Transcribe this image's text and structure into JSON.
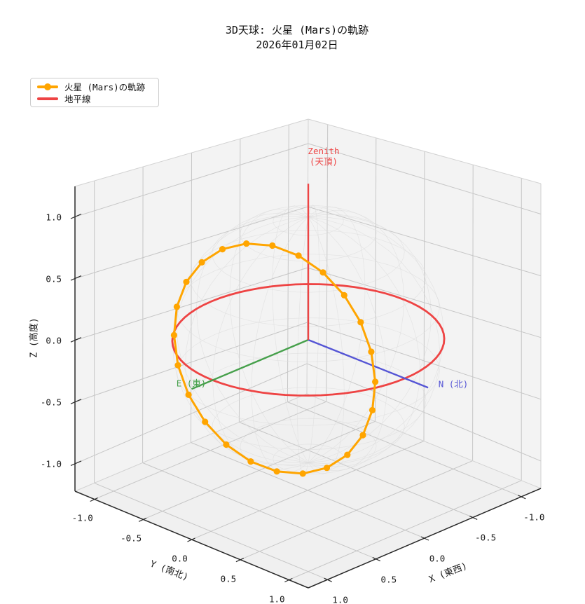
{
  "chart_data": {
    "type": "line",
    "projection": "3d",
    "title": "3D天球: 火星 (Mars)の軌跡",
    "subtitle": "2026年01月02日",
    "grid": true,
    "legend_position": "upper-left",
    "legend": [
      {
        "label": "火星 (Mars)の軌跡",
        "color": "#FFA500",
        "marker": "circle"
      },
      {
        "label": "地平線",
        "color": "#EE4444",
        "marker": "none"
      }
    ],
    "axes": {
      "x": {
        "label": "X (東西)",
        "ticks": [
          "1.0",
          "0.5",
          "0.0",
          "-0.5",
          "-1.0"
        ],
        "range": [
          -1.2,
          1.2
        ]
      },
      "y": {
        "label": "Y (南北)",
        "ticks": [
          "-1.0",
          "-0.5",
          "0.0",
          "0.5",
          "1.0"
        ],
        "range": [
          -1.2,
          1.2
        ]
      },
      "z": {
        "label": "Z (高度)",
        "ticks": [
          "1.0",
          "0.5",
          "0.0",
          "-0.5",
          "-1.0"
        ],
        "range": [
          -1.2,
          1.2
        ]
      }
    },
    "annotations": [
      {
        "line1": "Zenith",
        "line2": "(天頂)",
        "color": "#EE4444",
        "direction": [
          0,
          0,
          1
        ]
      },
      {
        "line1": "N (北)",
        "color": "#5555D5",
        "direction": [
          0,
          1,
          0
        ]
      },
      {
        "line1": "E (東)",
        "color": "#46A04B",
        "direction": [
          1,
          0,
          0
        ]
      }
    ],
    "horizon_circle": {
      "plane": "z=0",
      "radius": 1.0,
      "color": "#EE4444"
    },
    "celestial_sphere": {
      "radius": 1.0,
      "wireframe_color": "#DBDBDB"
    },
    "mars_trajectory": {
      "color": "#FFA500",
      "closed": true,
      "points": [
        [
          0.9,
          -0.348,
          -0.261
        ],
        [
          0.869,
          -0.208,
          -0.447
        ],
        [
          0.779,
          -0.078,
          -0.621
        ],
        [
          0.636,
          0.034,
          -0.77
        ],
        [
          0.45,
          0.12,
          -0.885
        ],
        [
          0.233,
          0.174,
          -0.957
        ],
        [
          0.0,
          0.192,
          -0.981
        ],
        [
          -0.233,
          0.174,
          -0.957
        ],
        [
          -0.45,
          0.12,
          -0.885
        ],
        [
          -0.636,
          0.034,
          -0.77
        ],
        [
          -0.779,
          -0.078,
          -0.621
        ],
        [
          -0.869,
          -0.208,
          -0.447
        ],
        [
          -0.9,
          -0.348,
          -0.261
        ],
        [
          -0.869,
          -0.488,
          -0.075
        ],
        [
          -0.779,
          -0.618,
          0.099
        ],
        [
          -0.636,
          -0.73,
          0.248
        ],
        [
          -0.45,
          -0.816,
          0.363
        ],
        [
          -0.233,
          -0.87,
          0.434
        ],
        [
          0.0,
          -0.888,
          0.459
        ],
        [
          0.233,
          -0.87,
          0.434
        ],
        [
          0.45,
          -0.816,
          0.363
        ],
        [
          0.636,
          -0.73,
          0.248
        ],
        [
          0.779,
          -0.618,
          0.099
        ],
        [
          0.869,
          -0.488,
          -0.075
        ]
      ]
    }
  }
}
